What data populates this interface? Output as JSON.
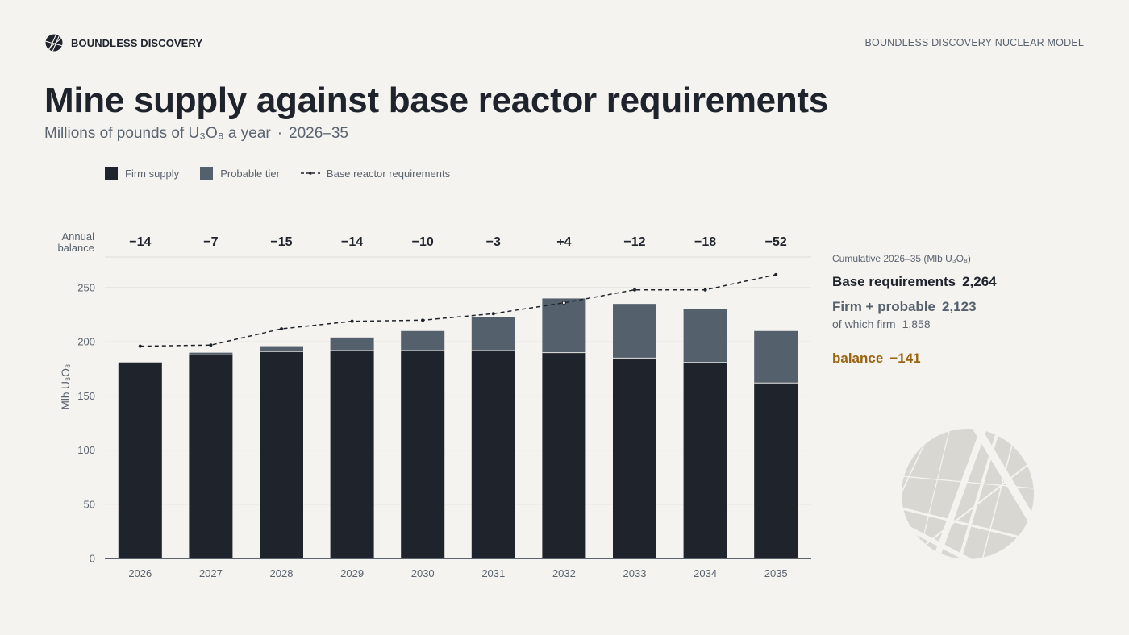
{
  "header": {
    "brand": "BOUNDLESS DISCOVERY",
    "right_label": "BOUNDLESS DISCOVERY NUCLEAR MODEL",
    "logo_icon": "split-globe-icon"
  },
  "title": "Mine supply against base reactor requirements",
  "subtitle": {
    "unit": "Millions of pounds of U₃O₈ a year",
    "separator": "·",
    "period": "2026–35"
  },
  "legend": {
    "firm": "Firm supply",
    "probable": "Probable tier",
    "requirements": "Base reactor requirements"
  },
  "colors": {
    "firm": "#1e232c",
    "probable": "#55606d",
    "requirements_line": "#1e232c",
    "balance_accent": "#9a6410",
    "background": "#f4f3ef"
  },
  "chart_data": {
    "type": "bar",
    "stacked": true,
    "categories": [
      "2026",
      "2027",
      "2028",
      "2029",
      "2030",
      "2031",
      "2032",
      "2033",
      "2034",
      "2035"
    ],
    "series": [
      {
        "name": "Firm supply",
        "values": [
          181,
          188,
          191,
          192,
          192,
          192,
          190,
          185,
          181,
          162
        ]
      },
      {
        "name": "Probable tier",
        "values": [
          0,
          2,
          5,
          12,
          18,
          31,
          50,
          50,
          49,
          48
        ]
      },
      {
        "name": "Base reactor requirements",
        "type": "line",
        "style": "dashed",
        "values": [
          196,
          197,
          212,
          219,
          220,
          226,
          236,
          248,
          248,
          262
        ]
      }
    ],
    "annual_balance_label": [
      "Annual",
      "balance"
    ],
    "annual_balance": [
      "−14",
      "−7",
      "−15",
      "−14",
      "−10",
      "−3",
      "+4",
      "−12",
      "−18",
      "−52"
    ],
    "ylabel": "Mlb U₃O₈",
    "xlabel": "",
    "ylim": [
      0,
      250
    ],
    "yticks": [
      0,
      50,
      100,
      150,
      200,
      250
    ],
    "grid": true
  },
  "summary": {
    "heading": "Cumulative 2026–35 (Mlb U₃O₈)",
    "requirements_label": "Base requirements",
    "requirements_value": "2,264",
    "firm_probable_label": "Firm + probable",
    "firm_probable_value": "2,123",
    "firm_only_label": "of which firm",
    "firm_only_value": "1,858",
    "balance_label": "balance",
    "balance_value": "−141"
  }
}
